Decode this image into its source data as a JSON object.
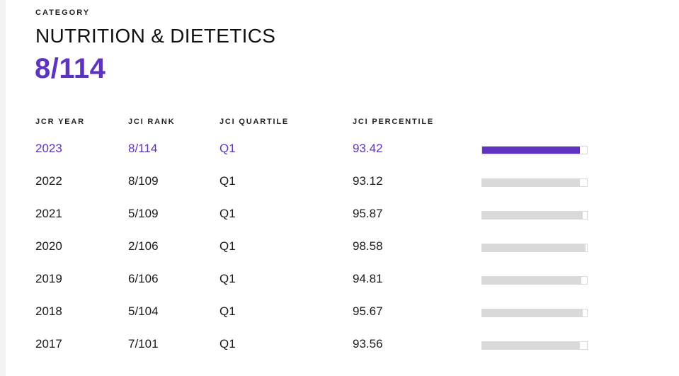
{
  "category": {
    "label": "CATEGORY",
    "name": "NUTRITION & DIETETICS",
    "rank": "8/114"
  },
  "table": {
    "headers": {
      "year": "JCR YEAR",
      "rank": "JCI RANK",
      "quartile": "JCI QUARTILE",
      "percentile": "JCI PERCENTILE"
    },
    "rows": [
      {
        "year": "2023",
        "rank": "8/114",
        "quartile": "Q1",
        "percentile": "93.42",
        "percentile_value": 93.42,
        "current": true
      },
      {
        "year": "2022",
        "rank": "8/109",
        "quartile": "Q1",
        "percentile": "93.12",
        "percentile_value": 93.12,
        "current": false
      },
      {
        "year": "2021",
        "rank": "5/109",
        "quartile": "Q1",
        "percentile": "95.87",
        "percentile_value": 95.87,
        "current": false
      },
      {
        "year": "2020",
        "rank": "2/106",
        "quartile": "Q1",
        "percentile": "98.58",
        "percentile_value": 98.58,
        "current": false
      },
      {
        "year": "2019",
        "rank": "6/106",
        "quartile": "Q1",
        "percentile": "94.81",
        "percentile_value": 94.81,
        "current": false
      },
      {
        "year": "2018",
        "rank": "5/104",
        "quartile": "Q1",
        "percentile": "95.67",
        "percentile_value": 95.67,
        "current": false
      },
      {
        "year": "2017",
        "rank": "7/101",
        "quartile": "Q1",
        "percentile": "93.56",
        "percentile_value": 93.56,
        "current": false
      }
    ]
  },
  "colors": {
    "accent": "#5e33bf",
    "bar_inactive": "#d9d9d9",
    "text": "#1a1a1a"
  }
}
